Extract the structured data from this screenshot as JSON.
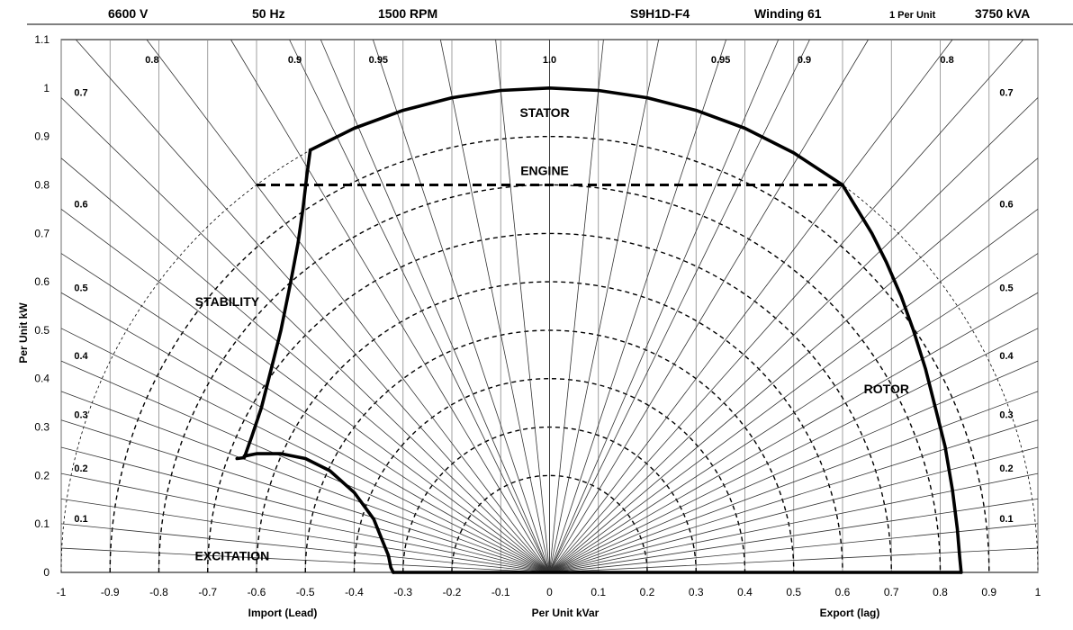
{
  "header": {
    "voltage": "6600 V",
    "frequency": "50 Hz",
    "speed": "1500 RPM",
    "model": "S9H1D-F4",
    "winding": "Winding 61",
    "per_unit": "1 Per Unit",
    "rating": "3750 kVA"
  },
  "chart_data": {
    "type": "line",
    "title": "",
    "xlabel": "Per Unit kVar",
    "xlabel_left": "Import (Lead)",
    "xlabel_right": "Export (lag)",
    "ylabel": "Per Unit kW",
    "xlim": [
      -1,
      1
    ],
    "ylim": [
      0,
      1.1
    ],
    "x_ticks": [
      "-1",
      "-0.9",
      "-0.8",
      "-0.7",
      "-0.6",
      "-0.5",
      "-0.4",
      "-0.3",
      "-0.2",
      "-0.1",
      "0",
      "0.1",
      "0.2",
      "0.3",
      "0.4",
      "0.5",
      "0.6",
      "0.7",
      "0.8",
      "0.9",
      "1"
    ],
    "y_ticks": [
      "0",
      "0.1",
      "0.2",
      "0.3",
      "0.4",
      "0.5",
      "0.6",
      "0.7",
      "0.8",
      "0.9",
      "1",
      "1.1"
    ],
    "grid": true,
    "dashed_arcs_radius": [
      0.2,
      0.3,
      0.4,
      0.5,
      0.6,
      0.7,
      0.8,
      0.9
    ],
    "outer_arc_radius": 1.0,
    "pf_top_labels": [
      {
        "label": "0.8",
        "pf": 0.8
      },
      {
        "label": "0.9",
        "pf": 0.9
      },
      {
        "label": "0.95",
        "pf": 0.95
      },
      {
        "label": "1.0",
        "pf": 1.0
      }
    ],
    "pf_side_labels": [
      "0.7",
      "0.6",
      "0.5",
      "0.4",
      "0.3",
      "0.2",
      "0.1"
    ],
    "regions": [
      {
        "label": "STATOR",
        "x": -0.01,
        "y": 0.94
      },
      {
        "label": "ENGINE",
        "x": -0.01,
        "y": 0.82
      },
      {
        "label": "STABILITY",
        "x": -0.66,
        "y": 0.55
      },
      {
        "label": "ROTOR",
        "x": 0.69,
        "y": 0.37
      },
      {
        "label": "EXCITATION",
        "x": -0.65,
        "y": 0.025
      }
    ],
    "series": [
      {
        "name": "STATOR",
        "style": "solid",
        "x": [
          -0.49,
          -0.4,
          -0.3,
          -0.2,
          -0.1,
          0,
          0.1,
          0.2,
          0.3,
          0.4,
          0.5,
          0.6
        ],
        "y": [
          0.872,
          0.917,
          0.954,
          0.98,
          0.995,
          1.0,
          0.995,
          0.98,
          0.954,
          0.917,
          0.866,
          0.8
        ]
      },
      {
        "name": "ENGINE",
        "style": "dashed",
        "x": [
          -0.6,
          0.6
        ],
        "y": [
          0.8,
          0.8
        ]
      },
      {
        "name": "STABILITY",
        "style": "solid",
        "x": [
          -0.64,
          -0.625,
          -0.61,
          -0.59,
          -0.57,
          -0.55,
          -0.53,
          -0.515,
          -0.505,
          -0.497,
          -0.49
        ],
        "y": [
          0.235,
          0.237,
          0.28,
          0.34,
          0.42,
          0.5,
          0.6,
          0.68,
          0.75,
          0.82,
          0.872
        ]
      },
      {
        "name": "ROTOR",
        "style": "solid",
        "x": [
          0.6,
          0.63,
          0.66,
          0.69,
          0.72,
          0.745,
          0.77,
          0.79,
          0.81,
          0.825,
          0.835,
          0.84,
          0.843
        ],
        "y": [
          0.8,
          0.75,
          0.7,
          0.64,
          0.57,
          0.5,
          0.42,
          0.34,
          0.26,
          0.17,
          0.09,
          0.03,
          0
        ]
      },
      {
        "name": "EXCITATION",
        "style": "solid",
        "x": [
          -0.625,
          -0.6,
          -0.55,
          -0.5,
          -0.45,
          -0.4,
          -0.36,
          -0.34,
          -0.33,
          -0.325,
          -0.32
        ],
        "y": [
          0.24,
          0.245,
          0.245,
          0.235,
          0.21,
          0.165,
          0.11,
          0.06,
          0.035,
          0.01,
          0
        ]
      },
      {
        "name": "BASE",
        "style": "solid",
        "x": [
          -0.32,
          0.843
        ],
        "y": [
          0,
          0
        ]
      }
    ]
  }
}
